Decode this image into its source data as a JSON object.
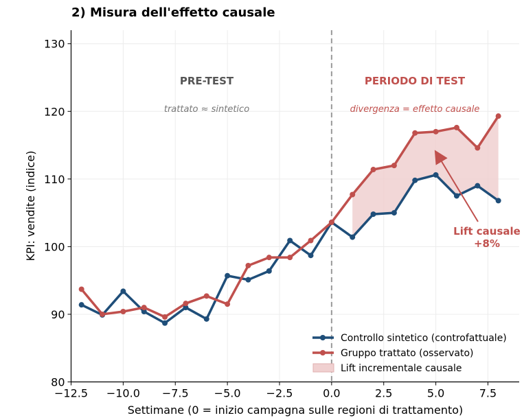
{
  "chart_data": {
    "type": "line",
    "title": "2) Misura dell'effetto causale",
    "xlabel": "Settimane (0 = inizio campagna sulle regioni di trattamento)",
    "ylabel": "KPI: vendite (indice)",
    "xlim": [
      -12.5,
      9.0
    ],
    "ylim": [
      80,
      132
    ],
    "xticks": [
      -12.5,
      -10.0,
      -7.5,
      -5.0,
      -2.5,
      0.0,
      2.5,
      5.0,
      7.5
    ],
    "xtick_labels": [
      "−12.5",
      "−10.0",
      "−7.5",
      "−5.0",
      "−2.5",
      "0.0",
      "2.5",
      "5.0",
      "7.5"
    ],
    "yticks": [
      80,
      90,
      100,
      110,
      120,
      130
    ],
    "ytick_labels": [
      "80",
      "90",
      "100",
      "110",
      "120",
      "130"
    ],
    "grid": true,
    "legend_position": "lower-right",
    "x": [
      -12,
      -11,
      -10,
      -9,
      -8,
      -7,
      -6,
      -5,
      -4,
      -3,
      -2,
      -1,
      0,
      1,
      2,
      3,
      4,
      5,
      6,
      7,
      8
    ],
    "series": [
      {
        "name": "Controllo sintetico (controfattuale)",
        "color": "#1f4e79",
        "values": [
          91.4,
          89.9,
          93.4,
          90.4,
          88.7,
          91.0,
          89.3,
          95.7,
          95.1,
          96.4,
          100.9,
          98.7,
          103.6,
          101.4,
          104.8,
          105.0,
          109.8,
          110.6,
          107.5,
          109.0,
          106.8
        ]
      },
      {
        "name": "Gruppo trattato (osservato)",
        "color": "#c0504d",
        "values": [
          93.7,
          90.0,
          90.4,
          91.0,
          89.6,
          91.6,
          92.7,
          91.5,
          97.2,
          98.4,
          98.4,
          100.9,
          103.6,
          107.7,
          111.4,
          112.0,
          116.8,
          117.0,
          117.6,
          114.6,
          119.3
        ]
      }
    ],
    "band": {
      "name": "Lift incrementale causale",
      "color": "#f0d0d0",
      "x_from": 1,
      "x_to": 8
    },
    "vline": {
      "x": 0
    },
    "annotations": {
      "pre_title": "PRE-TEST",
      "pre_sub": "trattato ≈ sintetico",
      "post_title": "PERIODO DI TEST",
      "post_sub": "divergenza = effetto causale",
      "lift_line1": "Lift causale",
      "lift_line2": "+8%"
    }
  }
}
